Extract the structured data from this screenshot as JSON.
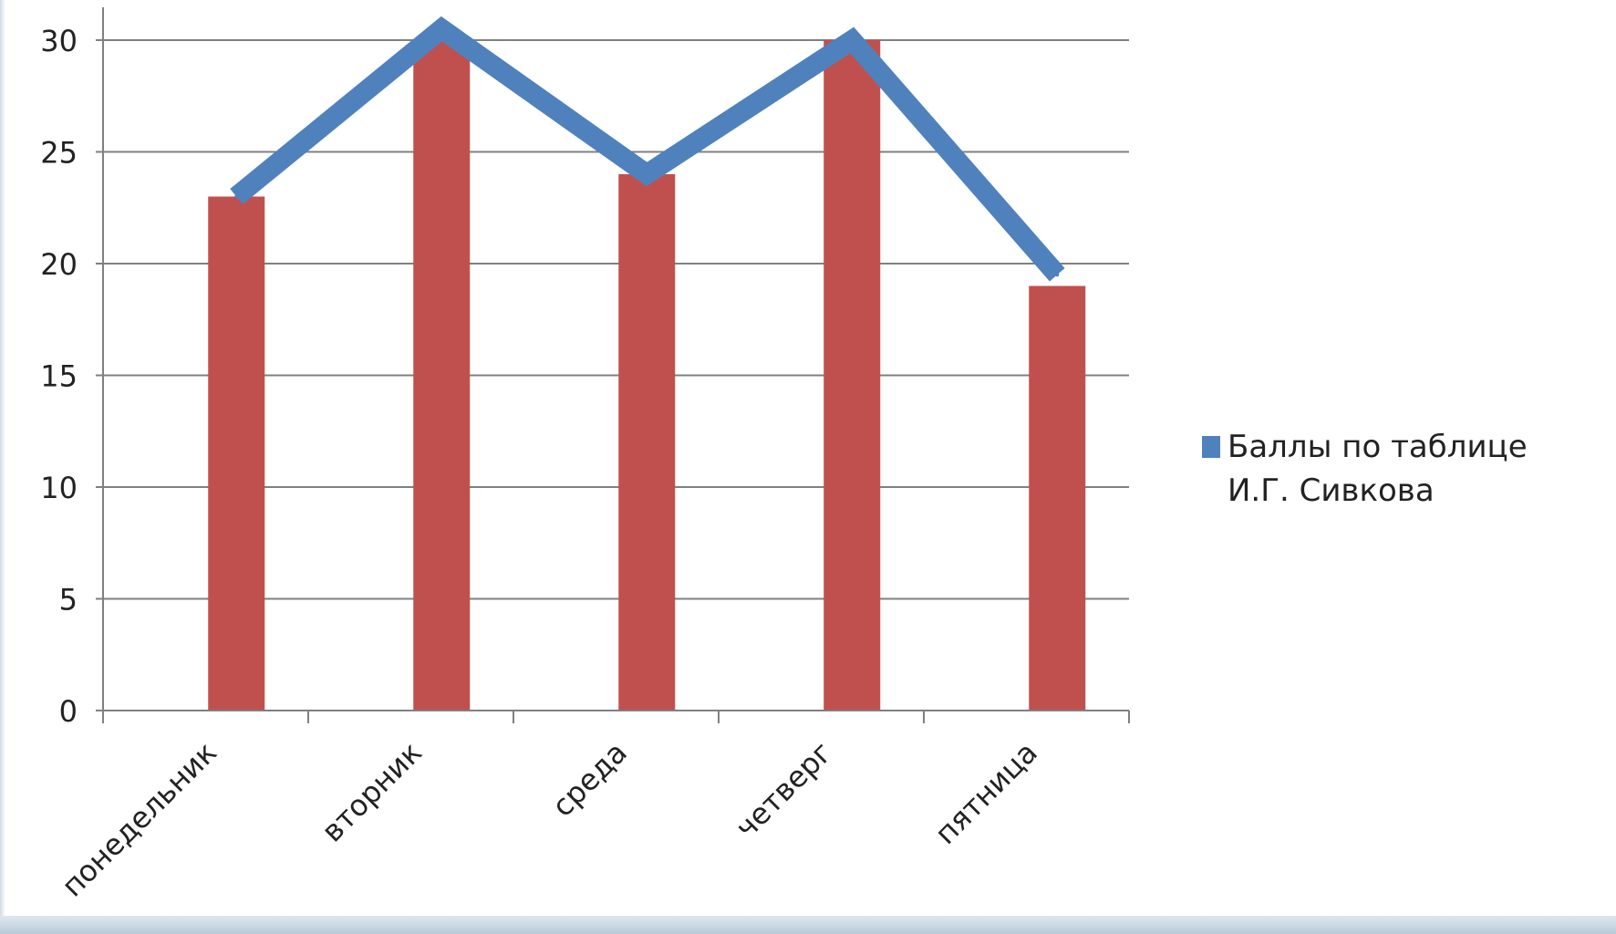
{
  "chart_data": {
    "type": "bar",
    "categories": [
      "понедельник",
      "вторник",
      "среда",
      "четверг",
      "пятница"
    ],
    "series": [
      {
        "name": "",
        "type": "bar",
        "values": [
          23,
          30,
          24,
          30,
          19
        ],
        "color": "#c0504d"
      },
      {
        "name": "Баллы по таблице  И.Г. Сивкова",
        "type": "line",
        "values": [
          23,
          30.5,
          24,
          30,
          19.5
        ],
        "color": "#4f81bd"
      }
    ],
    "title": "",
    "xlabel": "",
    "ylabel": "",
    "ylim": [
      0,
      30
    ],
    "yticks": [
      0,
      5,
      10,
      15,
      20,
      25,
      30
    ],
    "grid": true,
    "legend": "right",
    "colors": {
      "grid": "#808080",
      "axis": "#808080",
      "text": "#222222"
    }
  }
}
